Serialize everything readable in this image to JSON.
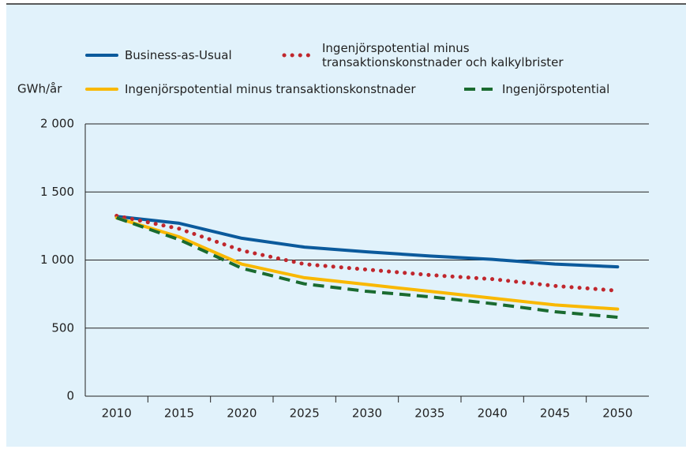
{
  "chart_data": {
    "type": "line",
    "y_label": "GWh/år",
    "categories": [
      "2010",
      "2015",
      "2020",
      "2025",
      "2030",
      "2035",
      "2040",
      "2045",
      "2050"
    ],
    "series": [
      {
        "name": "Business-as-Usual",
        "color": "#0b5a9c",
        "style": "solid",
        "values": [
          1320,
          1270,
          1160,
          1095,
          1060,
          1030,
          1005,
          970,
          950
        ]
      },
      {
        "name": "Ingenjörspotential minus transaktionskonstnader och kalkylbrister",
        "color": "#c0272d",
        "style": "dotted",
        "values": [
          1325,
          1230,
          1070,
          970,
          930,
          890,
          860,
          810,
          775
        ]
      },
      {
        "name": "Ingenjörspotential minus transaktionskonstnader",
        "color": "#f9b800",
        "style": "solid",
        "values": [
          1310,
          1170,
          970,
          870,
          820,
          770,
          720,
          670,
          640
        ]
      },
      {
        "name": "Ingenjörspotential",
        "color": "#1a6b30",
        "style": "dashed",
        "values": [
          1310,
          1150,
          940,
          825,
          770,
          730,
          680,
          620,
          580
        ]
      }
    ],
    "ylim": [
      0,
      2000
    ],
    "yticks": [
      0,
      500,
      {
        "value": 1000,
        "label": "1 000"
      },
      {
        "value": 1500,
        "label": "1 500"
      },
      {
        "value": 2000,
        "label": "2 000"
      }
    ],
    "grid": true
  }
}
